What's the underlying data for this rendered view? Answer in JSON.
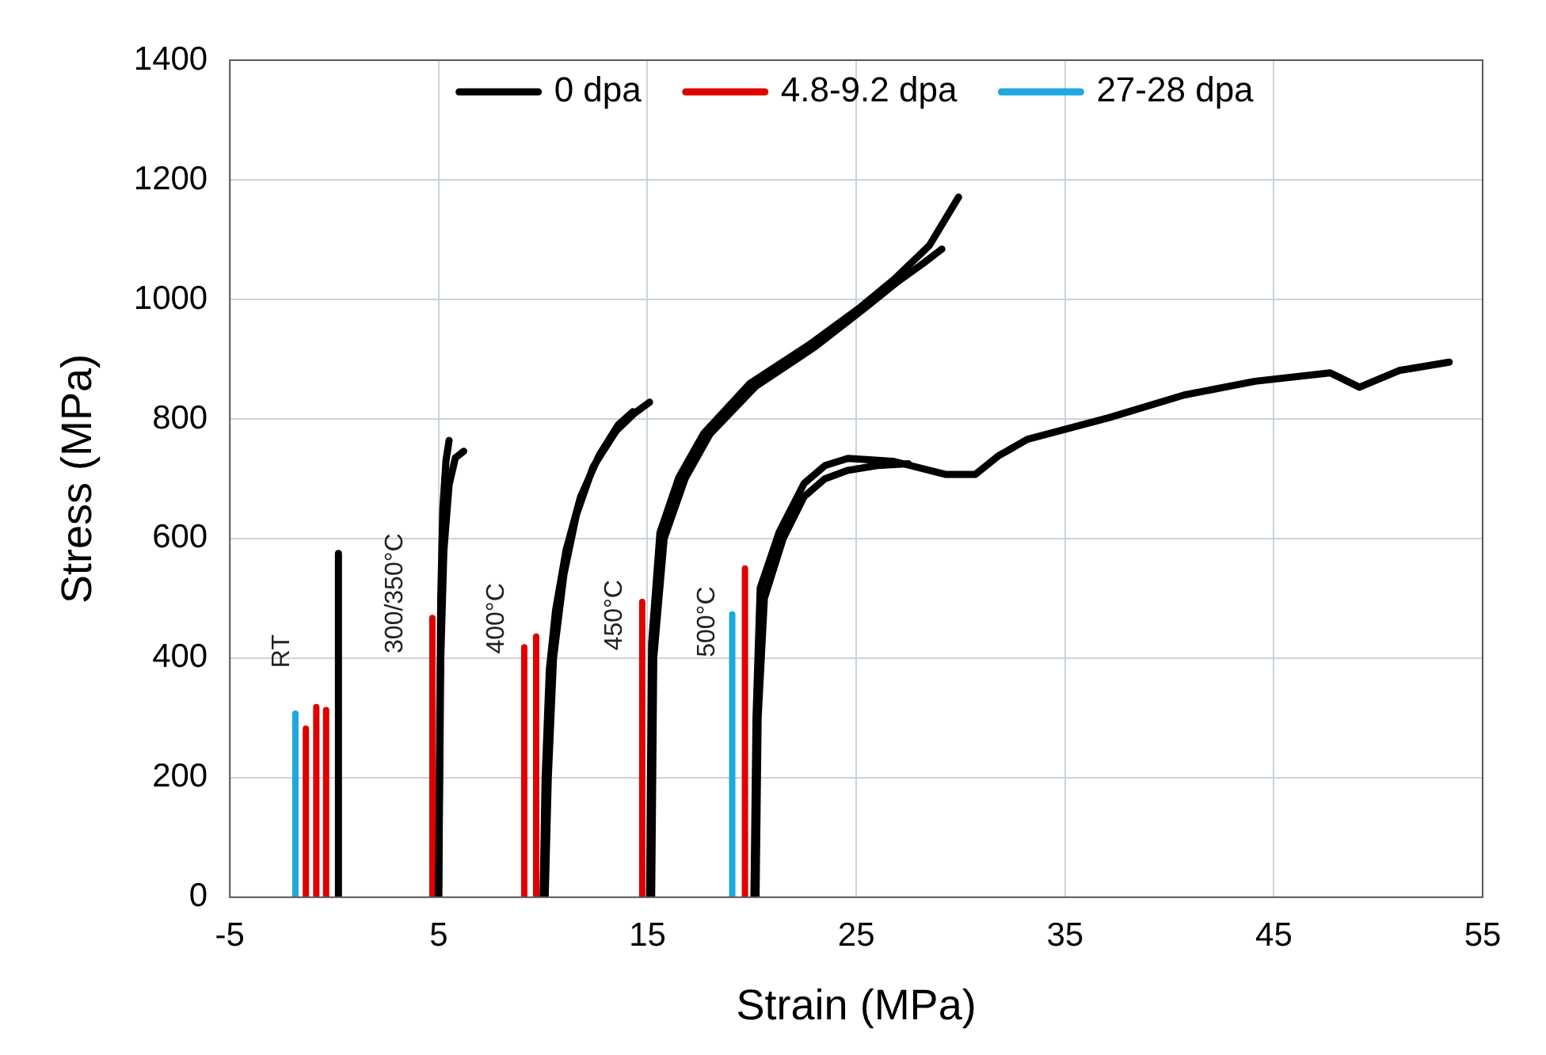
{
  "chart_data": {
    "type": "line",
    "xlabel": "Strain (MPa)",
    "ylabel": "Stress (MPa)",
    "xlim": [
      -5,
      55
    ],
    "xticks": [
      -5,
      5,
      15,
      25,
      35,
      45,
      55
    ],
    "ylim": [
      0,
      1400
    ],
    "yticks": [
      0,
      200,
      400,
      600,
      800,
      1000,
      1200,
      1400
    ],
    "grid": true,
    "legend": "top",
    "annotations": [
      "RT",
      "300/350°C",
      "400°C",
      "450°C",
      "500°C"
    ],
    "series": [
      {
        "name": "0 dpa",
        "color": "#000000",
        "x": [
          0.2,
          0.2
        ],
        "values": [
          0,
          575
        ]
      },
      {
        "color": "#000000",
        "x": [
          5.0,
          5.05,
          5.1,
          5.2,
          5.35,
          5.5
        ],
        "values": [
          0,
          300,
          500,
          650,
          730,
          764
        ]
      },
      {
        "color": "#000000",
        "x": [
          5.0,
          5.1,
          5.25,
          5.5,
          5.8,
          6.2
        ],
        "values": [
          0,
          400,
          580,
          690,
          735,
          746
        ]
      },
      {
        "color": "#000000",
        "x": [
          10.0,
          10.1,
          10.3,
          10.6,
          11.1,
          11.8,
          12.7,
          13.6,
          14.3
        ],
        "values": [
          0,
          200,
          380,
          480,
          580,
          670,
          740,
          790,
          812
        ]
      },
      {
        "color": "#000000",
        "x": [
          10.1,
          10.25,
          10.5,
          11.0,
          11.6,
          12.4,
          13.5,
          14.4,
          15.1
        ],
        "values": [
          0,
          200,
          400,
          540,
          640,
          720,
          780,
          810,
          828
        ]
      },
      {
        "color": "#000000",
        "x": [
          15.1,
          15.2,
          15.6,
          16.5,
          17.7,
          19.9,
          22.7,
          25.2,
          26.8,
          28.5,
          29.9
        ],
        "values": [
          0,
          425,
          610,
          702,
          776,
          859,
          923,
          987,
          1033,
          1090,
          1171
        ]
      },
      {
        "color": "#000000",
        "x": [
          15.2,
          15.3,
          15.8,
          16.8,
          18.0,
          20.2,
          23.0,
          25.4,
          27.0,
          28.2,
          29.1
        ],
        "values": [
          0,
          400,
          600,
          700,
          775,
          855,
          920,
          985,
          1030,
          1060,
          1084
        ]
      },
      {
        "color": "#000000",
        "x": [
          20.1,
          20.2,
          20.4,
          21.3,
          22.5,
          23.5,
          24.6,
          26.8,
          29.3,
          30.7,
          31.8,
          33.2,
          37.1,
          40.7,
          44.1,
          47.7,
          49.1,
          51,
          53.4
        ],
        "values": [
          0,
          300,
          517,
          610,
          692,
          722,
          734,
          729,
          707,
          707,
          738,
          766,
          802,
          840,
          863,
          877,
          853,
          881,
          895
        ]
      },
      {
        "color": "#000000",
        "x": [
          20.2,
          20.3,
          20.6,
          21.5,
          22.5,
          23.5,
          24.6,
          26.0,
          27.5
        ],
        "values": [
          0,
          300,
          500,
          600,
          670,
          700,
          714,
          722,
          725
        ]
      },
      {
        "name": "4.8-9.2 dpa",
        "color": "#e00000",
        "x": [
          -1.36,
          -1.36
        ],
        "values": [
          0,
          282
        ]
      },
      {
        "color": "#e00000",
        "x": [
          -0.86,
          -0.86
        ],
        "values": [
          0,
          318
        ]
      },
      {
        "color": "#e00000",
        "x": [
          -0.39,
          -0.39
        ],
        "values": [
          0,
          313
        ]
      },
      {
        "color": "#e00000",
        "x": [
          4.7,
          4.7
        ],
        "values": [
          0,
          467
        ]
      },
      {
        "color": "#e00000",
        "x": [
          9.1,
          9.1
        ],
        "values": [
          0,
          418
        ]
      },
      {
        "color": "#e00000",
        "x": [
          9.67,
          9.67
        ],
        "values": [
          0,
          436
        ]
      },
      {
        "color": "#e00000",
        "x": [
          14.75,
          14.75
        ],
        "values": [
          0,
          494
        ]
      },
      {
        "color": "#e00000",
        "x": [
          19.67,
          19.67
        ],
        "values": [
          0,
          550
        ]
      },
      {
        "name": "27-28 dpa",
        "color": "#1ea7e0",
        "x": [
          -1.86,
          -1.86
        ],
        "values": [
          0,
          307
        ]
      },
      {
        "color": "#1ea7e0",
        "x": [
          19.06,
          19.06
        ],
        "values": [
          0,
          473
        ]
      }
    ]
  }
}
